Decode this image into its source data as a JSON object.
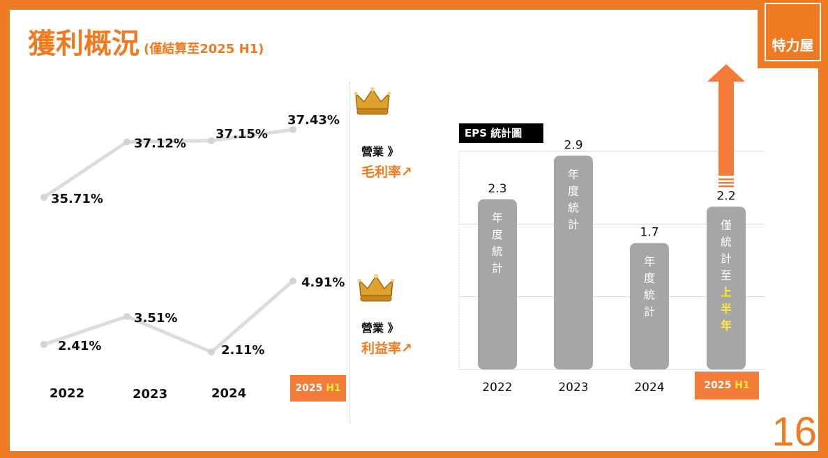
{
  "header": {
    "title": "獲利概況",
    "subtitle": "(僅結算至2025 H1)"
  },
  "logo": {
    "text": "特力屋"
  },
  "page_number": "16",
  "colors": {
    "accent": "#f07a22",
    "bar": "#a6a6a6",
    "line": "#dcdcdc",
    "highlight": "#ffeb3b"
  },
  "legend": {
    "gross": {
      "label1": "營業 》",
      "label2": "毛利率↗",
      "icon": "crown-icon"
    },
    "op": {
      "label1": "營業 》",
      "label2": "利益率↗",
      "icon": "crown-icon"
    }
  },
  "left_years": [
    "2022",
    "2023",
    "2024"
  ],
  "left_badge": {
    "year": "2025 ",
    "half": "H1"
  },
  "right_badge": {
    "year": "2025 ",
    "half": "H1"
  },
  "eps_title": "EPS 統計圖",
  "chart_data": [
    {
      "type": "line",
      "title": "營業毛利率",
      "x": [
        "2022",
        "2023",
        "2024",
        "2025 H1"
      ],
      "values": [
        35.71,
        37.12,
        37.15,
        37.43
      ],
      "labels": [
        "35.71%",
        "37.12%",
        "37.15%",
        "37.43%"
      ]
    },
    {
      "type": "line",
      "title": "營業利益率",
      "x": [
        "2022",
        "2023",
        "2024",
        "2025 H1"
      ],
      "values": [
        2.41,
        3.51,
        2.11,
        4.91
      ],
      "labels": [
        "2.41%",
        "3.51%",
        "2.11%",
        "4.91%"
      ]
    },
    {
      "type": "bar",
      "title": "EPS 統計圖",
      "categories": [
        "2022",
        "2023",
        "2024",
        "2025 H1"
      ],
      "values": [
        2.3,
        2.9,
        1.7,
        2.2
      ],
      "value_labels": [
        "2.3",
        "2.9",
        "1.7",
        "2.2"
      ],
      "bar_text": [
        "年度統計",
        "年度統計",
        "年度統計",
        "僅統計至"
      ],
      "bar_text_highlight": [
        "",
        "",
        "",
        "上半年"
      ],
      "ylim": [
        0,
        3
      ],
      "grid": true,
      "annotation": "upward arrow above 2025 H1"
    }
  ]
}
